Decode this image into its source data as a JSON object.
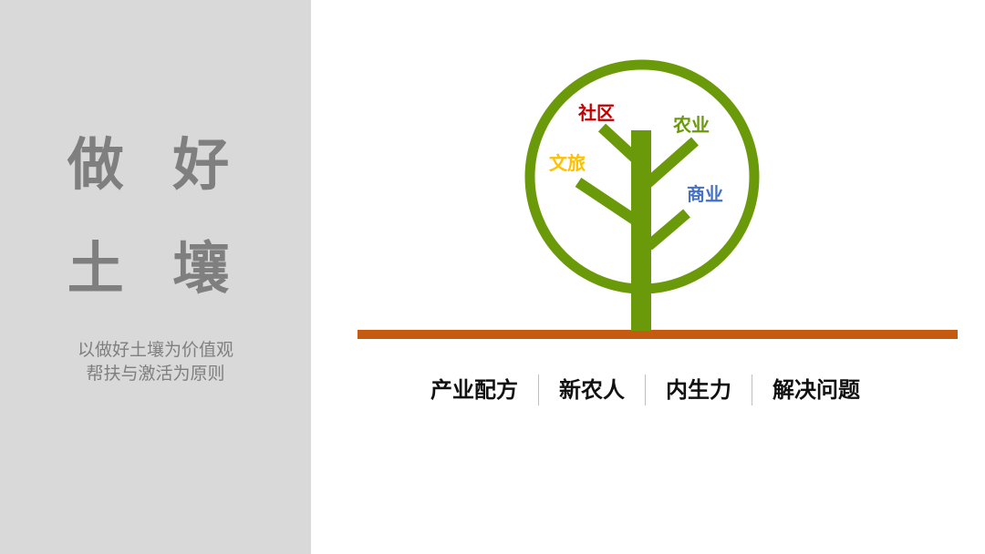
{
  "left_panel": {
    "title_line1": "做 好",
    "title_line2": "土 壤",
    "subtitle_line1": "以做好土壤为价值观",
    "subtitle_line2": "帮扶与激活为原则"
  },
  "tree": {
    "labels": {
      "community": "社区",
      "agriculture": "农业",
      "culture_tourism": "文旅",
      "commerce": "商业"
    },
    "colors": {
      "tree_green": "#6a9a0a",
      "ground_orange": "#c55a11",
      "community_red": "#c00000",
      "agriculture_green": "#6a9a0a",
      "culture_tourism_yellow": "#ffc000",
      "commerce_blue": "#4472c4"
    }
  },
  "pillars": [
    "产业配方",
    "新农人",
    "内生力",
    "解决问题"
  ]
}
